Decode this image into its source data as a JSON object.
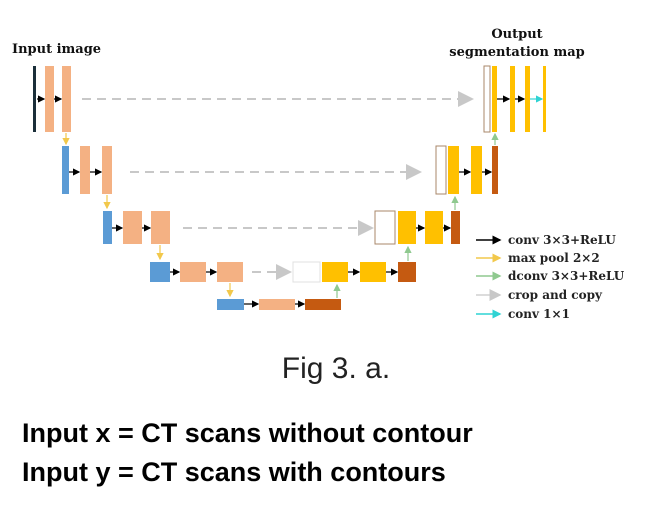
{
  "diagram": {
    "input_label": "Input image",
    "output_label_1": "Output",
    "output_label_2": "segmentation map"
  },
  "legend": {
    "items": [
      {
        "label": "conv 3×3+ReLU",
        "color": "#000000"
      },
      {
        "label": "max pool 2×2",
        "color": "#f2c84b"
      },
      {
        "label": "dconv 3×3+ReLU",
        "color": "#8fc98f"
      },
      {
        "label": "crop and copy",
        "color": "#d0d0d0"
      },
      {
        "label": "conv 1×1",
        "color": "#2fd3d3"
      }
    ]
  },
  "caption": "Fig 3. a.",
  "text_lines": {
    "input_x": "Input x =  CT scans without contour",
    "input_y": "Input y = CT scans with contours"
  },
  "colors": {
    "salmon": "#f4b183",
    "blue": "#5b9bd5",
    "yellow": "#ffc000",
    "brown": "#c55a11"
  }
}
